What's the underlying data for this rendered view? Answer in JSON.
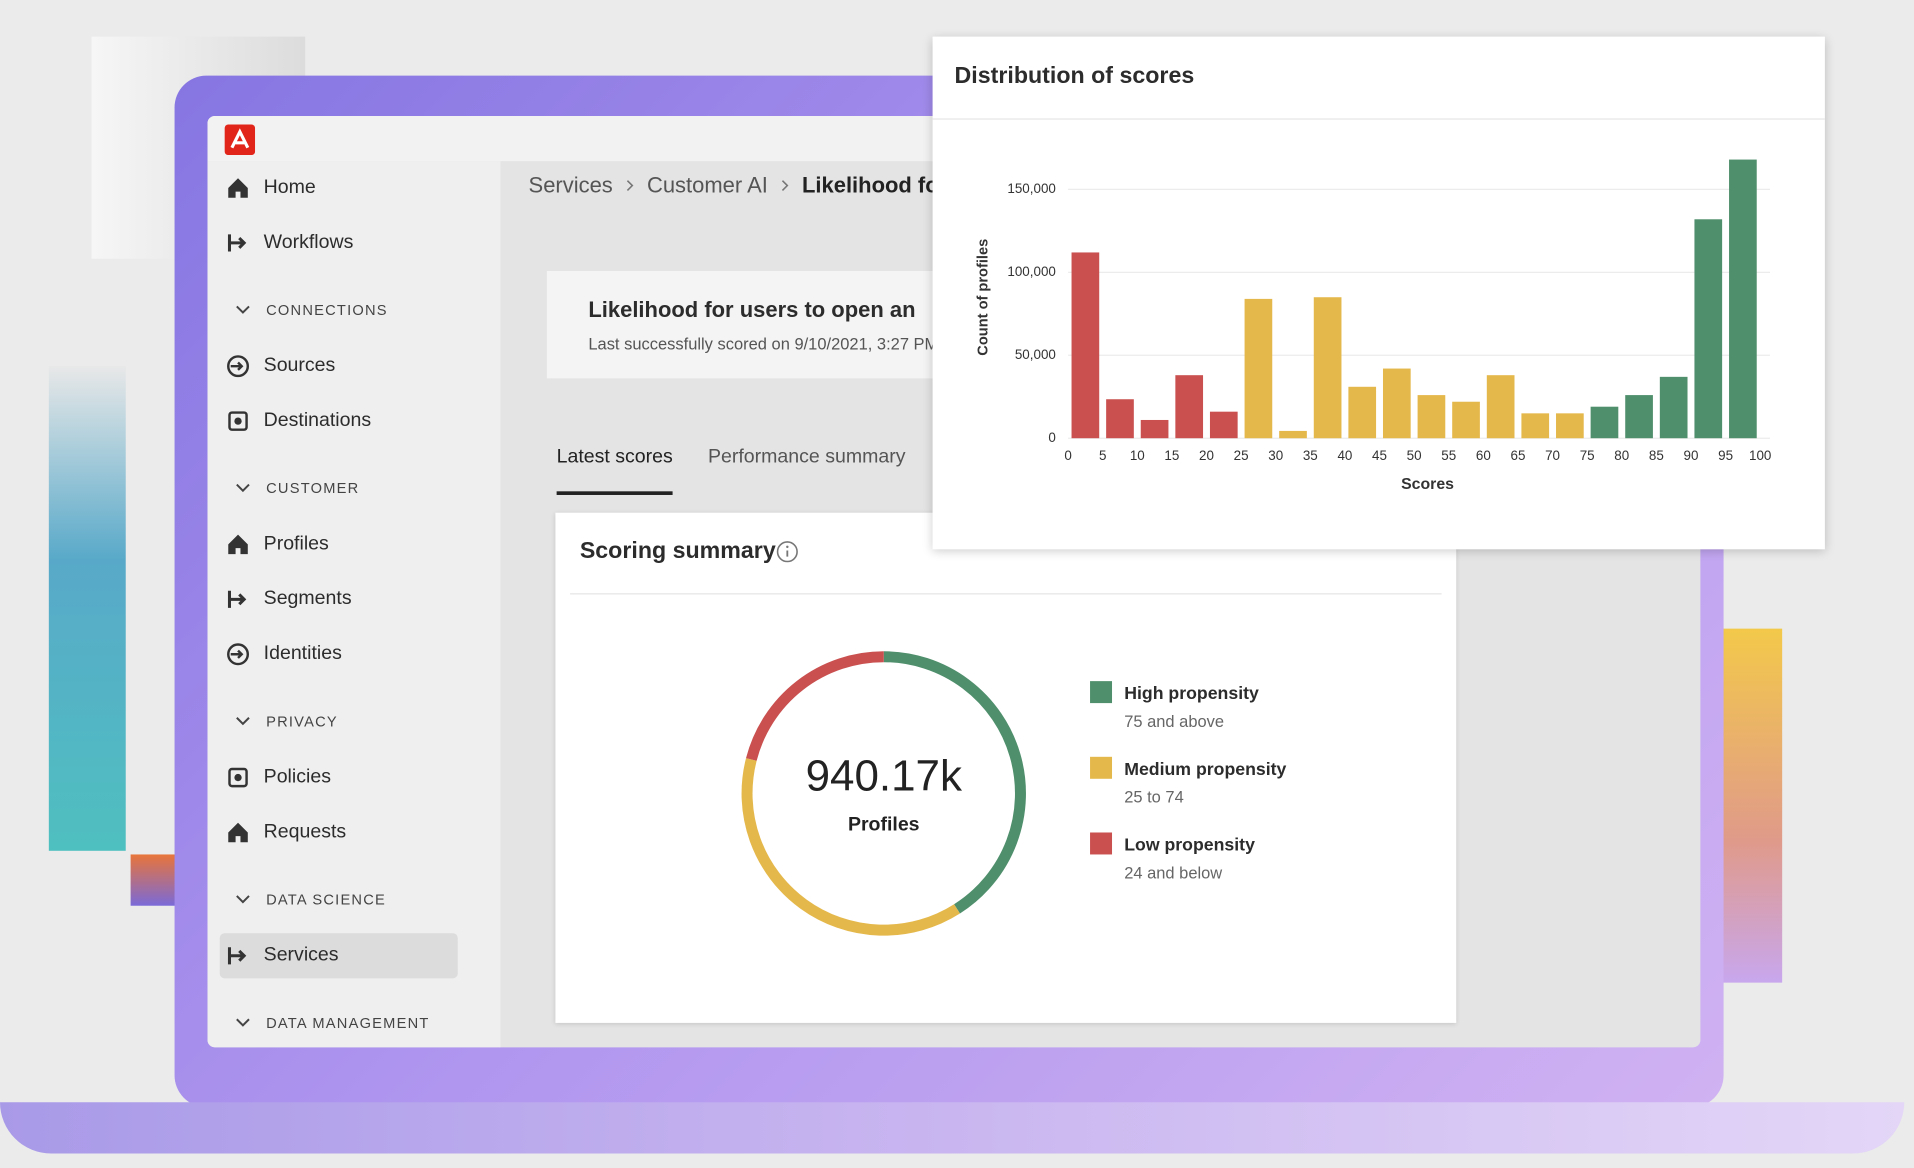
{
  "nav": {
    "items": [
      {
        "label": "Home"
      },
      {
        "label": "Workflows"
      }
    ],
    "sections": [
      {
        "title": "CONNECTIONS",
        "items": [
          {
            "label": "Sources"
          },
          {
            "label": "Destinations"
          }
        ]
      },
      {
        "title": "CUSTOMER",
        "items": [
          {
            "label": "Profiles"
          },
          {
            "label": "Segments"
          },
          {
            "label": "Identities"
          }
        ]
      },
      {
        "title": "PRIVACY",
        "items": [
          {
            "label": "Policies"
          },
          {
            "label": "Requests"
          }
        ]
      },
      {
        "title": "DATA SCIENCE",
        "items": [
          {
            "label": "Services",
            "active": true
          }
        ]
      },
      {
        "title": "DATA MANAGEMENT",
        "items": []
      }
    ]
  },
  "breadcrumb": [
    "Services",
    "Customer AI",
    "Likelihood for users to open an"
  ],
  "model": {
    "title": "Likelihood for users to open an",
    "subtitle": "Last successfully scored on 9/10/2021, 3:27 PM"
  },
  "tabs": [
    {
      "label": "Latest scores",
      "active": true
    },
    {
      "label": "Performance summary"
    }
  ],
  "chart_data": [
    {
      "type": "histogram",
      "title": "Distribution of scores",
      "xlabel": "Scores",
      "ylabel": "Count of profiles",
      "bins": [
        0,
        5,
        10,
        15,
        20,
        25,
        30,
        35,
        40,
        45,
        50,
        55,
        60,
        65,
        70,
        75,
        80,
        85,
        90,
        95,
        100
      ],
      "values": [
        112000,
        23500,
        11000,
        38000,
        16000,
        84000,
        4400,
        85000,
        31000,
        42000,
        26000,
        22000,
        38000,
        15000,
        15000,
        19000,
        26000,
        37000,
        132000,
        168000
      ],
      "colors": [
        "#c9504f",
        "#c9504f",
        "#c9504f",
        "#c9504f",
        "#c9504f",
        "#e5b84b",
        "#e5b84b",
        "#e5b84b",
        "#e5b84b",
        "#e5b84b",
        "#e5b84b",
        "#e5b84b",
        "#e5b84b",
        "#e5b84b",
        "#e5b84b",
        "#4f8f6c",
        "#4f8f6c",
        "#4f8f6c",
        "#4f8f6c",
        "#4f8f6c"
      ],
      "ylim": [
        0,
        170000
      ],
      "yticks": [
        0,
        {
          "value": 50000,
          "label": "50,000"
        },
        {
          "value": 100000,
          "label": "100,000"
        },
        {
          "value": 150000,
          "label": "150,000"
        }
      ],
      "grid": true
    },
    {
      "type": "donut",
      "title": "Scoring summary",
      "center_value": "940.17k",
      "center_label": "Profiles",
      "series": [
        {
          "name": "High propensity",
          "description": "75 and above",
          "color": "#4f8f6c",
          "value": 41
        },
        {
          "name": "Medium propensity",
          "description": "25 to 74",
          "color": "#e5b84b",
          "value": 38
        },
        {
          "name": "Low propensity",
          "description": "24 and below",
          "color": "#c9504f",
          "value": 21
        }
      ]
    }
  ]
}
